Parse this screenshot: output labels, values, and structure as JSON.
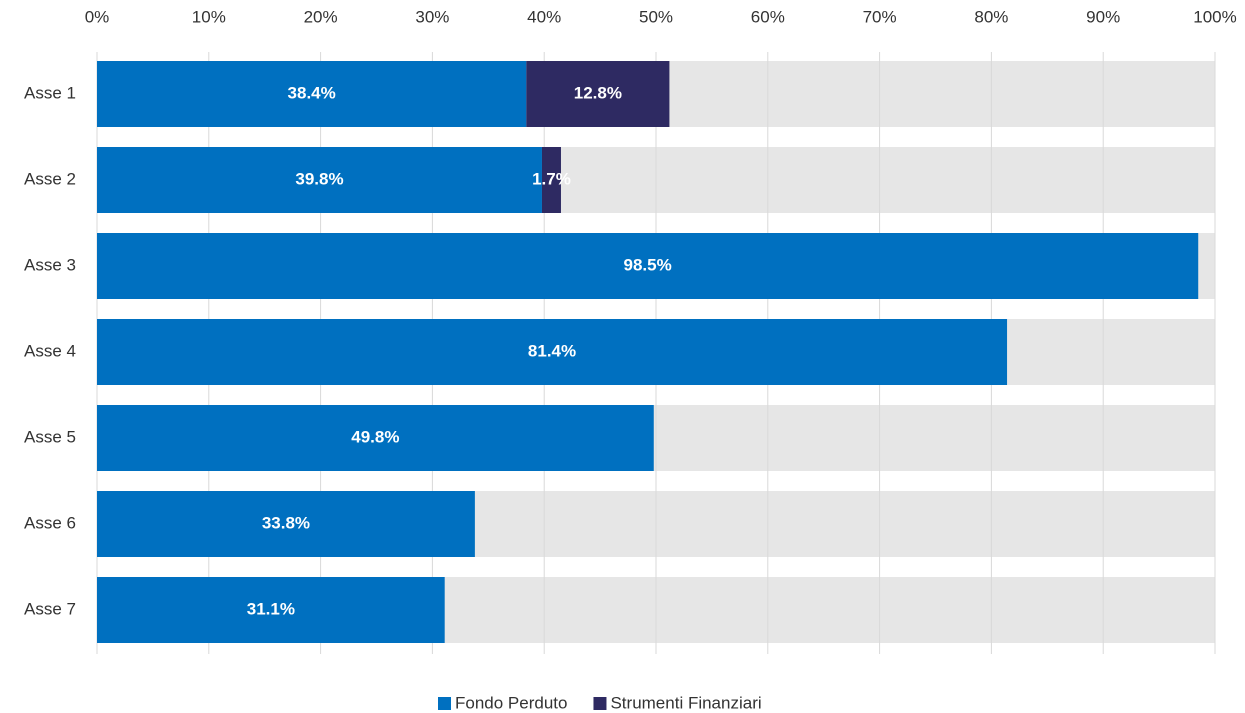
{
  "chart_data": {
    "type": "stacked_barh",
    "categories": [
      "Asse 1",
      "Asse 2",
      "Asse 3",
      "Asse 4",
      "Asse 5",
      "Asse 6",
      "Asse 7"
    ],
    "series": [
      {
        "name": "Fondo Perduto",
        "color": "#0070c0",
        "values": [
          38.4,
          39.8,
          98.5,
          81.4,
          49.8,
          33.8,
          31.1
        ],
        "value_labels": [
          "38.4%",
          "39.8%",
          "98.5%",
          "81.4%",
          "49.8%",
          "33.8%",
          "31.1%"
        ]
      },
      {
        "name": "Strumenti Finanziari",
        "color": "#2e2a62",
        "values": [
          12.8,
          1.7,
          null,
          null,
          null,
          null,
          null
        ],
        "value_labels": [
          "12.8%",
          "1.7%",
          null,
          null,
          null,
          null,
          null
        ]
      }
    ],
    "xlim": [
      0,
      100
    ],
    "xticks": [
      {
        "value": 0,
        "label": "0%"
      },
      {
        "value": 10,
        "label": "10%"
      },
      {
        "value": 20,
        "label": "20%"
      },
      {
        "value": 30,
        "label": "30%"
      },
      {
        "value": 40,
        "label": "40%"
      },
      {
        "value": 50,
        "label": "50%"
      },
      {
        "value": 60,
        "label": "60%"
      },
      {
        "value": 70,
        "label": "70%"
      },
      {
        "value": 80,
        "label": "80%"
      },
      {
        "value": 90,
        "label": "90%"
      },
      {
        "value": 100,
        "label": "100%"
      }
    ],
    "grid": true,
    "legend": "bottom"
  }
}
